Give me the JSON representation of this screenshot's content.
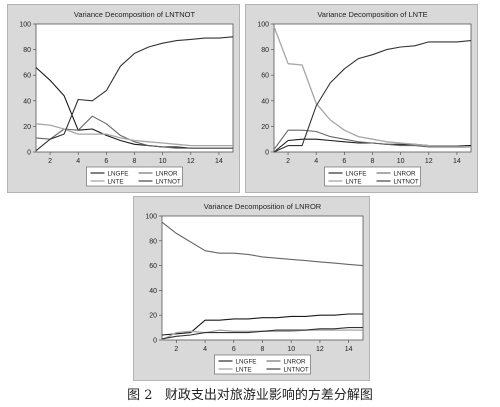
{
  "chart_data": [
    {
      "type": "line",
      "title": "Variance Decomposition of LNTNOT",
      "x": [
        1,
        2,
        3,
        4,
        5,
        6,
        7,
        8,
        9,
        10,
        11,
        12,
        13,
        14,
        15
      ],
      "xticks": [
        2,
        4,
        6,
        8,
        10,
        12,
        14
      ],
      "ylim": [
        0,
        100
      ],
      "yticks": [
        0,
        20,
        40,
        60,
        80,
        100
      ],
      "series": [
        {
          "name": "LNGFE",
          "values": [
            66,
            56,
            44,
            17,
            18,
            13,
            9,
            6,
            5,
            4,
            4,
            3,
            3,
            3,
            3
          ]
        },
        {
          "name": "LNROR",
          "values": [
            11,
            10,
            18,
            17,
            28,
            22,
            13,
            8,
            5,
            4,
            3,
            3,
            3,
            3,
            3
          ]
        },
        {
          "name": "LNTE",
          "values": [
            22,
            21,
            18,
            14,
            14,
            14,
            11,
            9,
            8,
            7,
            6,
            5,
            5,
            5,
            5
          ]
        },
        {
          "name": "LNTNOT",
          "values": [
            1,
            10,
            14,
            41,
            40,
            48,
            67,
            77,
            82,
            85,
            87,
            88,
            89,
            89,
            90
          ]
        }
      ]
    },
    {
      "type": "line",
      "title": "Variance Decomposition of LNTE",
      "x": [
        1,
        2,
        3,
        4,
        5,
        6,
        7,
        8,
        9,
        10,
        11,
        12,
        13,
        14,
        15
      ],
      "xticks": [
        2,
        4,
        6,
        8,
        10,
        12,
        14
      ],
      "ylim": [
        0,
        100
      ],
      "yticks": [
        0,
        20,
        40,
        60,
        80,
        100
      ],
      "series": [
        {
          "name": "LNGFE",
          "values": [
            0,
            9,
            10,
            10,
            9,
            8,
            7,
            7,
            6,
            6,
            6,
            5,
            5,
            5,
            5
          ]
        },
        {
          "name": "LNROR",
          "values": [
            2,
            17,
            17,
            16,
            12,
            10,
            8,
            7,
            6,
            5,
            5,
            4,
            4,
            4,
            4
          ]
        },
        {
          "name": "LNTE",
          "values": [
            98,
            69,
            68,
            38,
            25,
            17,
            12,
            10,
            8,
            7,
            6,
            5,
            5,
            5,
            4
          ]
        },
        {
          "name": "LNTNOT",
          "values": [
            0,
            5,
            5,
            36,
            54,
            65,
            73,
            76,
            80,
            82,
            83,
            86,
            86,
            86,
            87
          ]
        }
      ]
    },
    {
      "type": "line",
      "title": "Variance Decomposition of LNROR",
      "x": [
        1,
        2,
        3,
        4,
        5,
        6,
        7,
        8,
        9,
        10,
        11,
        12,
        13,
        14,
        15
      ],
      "xticks": [
        2,
        4,
        6,
        8,
        10,
        12,
        14
      ],
      "ylim": [
        0,
        100
      ],
      "yticks": [
        0,
        20,
        40,
        60,
        80,
        100
      ],
      "series": [
        {
          "name": "LNGFE",
          "values": [
            4,
            5,
            6,
            16,
            16,
            17,
            17,
            18,
            18,
            19,
            19,
            20,
            20,
            21,
            21
          ]
        },
        {
          "name": "LNROR",
          "values": [
            95,
            86,
            79,
            72,
            70,
            70,
            69,
            67,
            66,
            65,
            64,
            63,
            62,
            61,
            60
          ]
        },
        {
          "name": "LNTE",
          "values": [
            0,
            6,
            7,
            6,
            8,
            7,
            7,
            7,
            7,
            7,
            8,
            8,
            8,
            8,
            8
          ]
        },
        {
          "name": "LNTNOT",
          "values": [
            1,
            3,
            4,
            6,
            6,
            6,
            6,
            7,
            8,
            8,
            8,
            9,
            9,
            10,
            10
          ]
        }
      ]
    }
  ],
  "caption": {
    "label": "图 2",
    "text": "财政支出对旅游业影响的方差分解图"
  }
}
